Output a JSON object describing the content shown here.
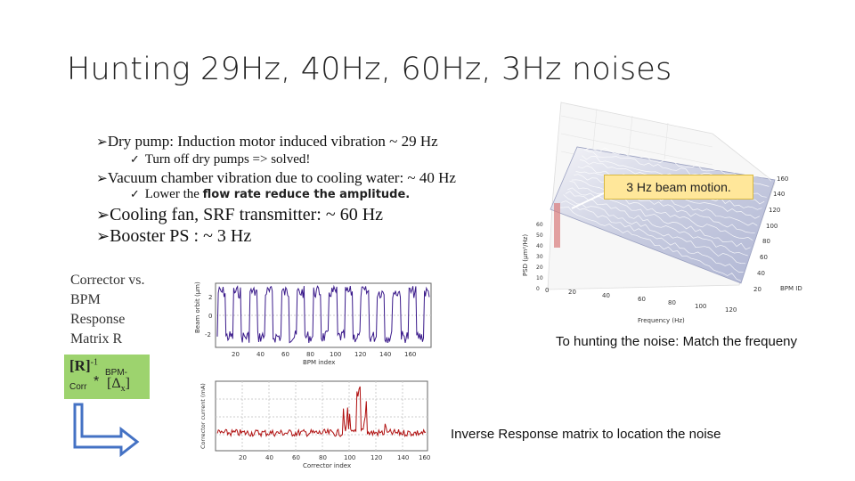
{
  "title": "Hunting 29Hz, 40Hz, 60Hz, 3Hz noises",
  "bullets": [
    {
      "text": "Dry pump: Induction motor induced vibration ~ 29 Hz"
    },
    {
      "sub": "Turn off dry pumps => solved!"
    },
    {
      "text": "Vacuum chamber vibration due to cooling water: ~ 40 Hz"
    },
    {
      "sub_prefix": "Lower the ",
      "sub_bold": "flow rate reduce the amplitude."
    },
    {
      "text": "Cooling fan, SRF transmitter: ~ 60 Hz"
    },
    {
      "text": "Booster PS : ~ 3 Hz"
    }
  ],
  "left_label": [
    "Corrector vs.",
    "BPM",
    "Response",
    "Matrix R"
  ],
  "formula": {
    "R": "[R]",
    "sup": "-1",
    "sub1": "BPM-",
    "sub2": "Corr",
    "star": "*",
    "delta": "[Δ",
    "delta_sub": "x",
    "close": "]"
  },
  "plot_top": {
    "ylabel": "Beam orbit (μm)",
    "xlabel": "BPM index",
    "xticks": [
      "20",
      "40",
      "60",
      "80",
      "100",
      "120",
      "140",
      "160"
    ],
    "yticks": [
      "2",
      "0",
      "-2"
    ]
  },
  "plot_bottom": {
    "ylabel": "Corrector current (mA)",
    "xlabel": "Corrector index",
    "xticks": [
      "20",
      "40",
      "60",
      "80",
      "100",
      "120",
      "140",
      "160"
    ]
  },
  "plot_3d": {
    "callout": "3 Hz beam motion.",
    "zlabel": "PSD (μm²/Hz)",
    "xlabel": "Frequency (Hz)",
    "ylabel": "BPM ID",
    "xticks": [
      "0",
      "20",
      "40",
      "60",
      "80",
      "100",
      "120"
    ],
    "yticks": [
      "20",
      "40",
      "60",
      "80",
      "100",
      "120",
      "140",
      "160"
    ],
    "zticks": [
      "0",
      "10",
      "20",
      "30",
      "40",
      "50",
      "60",
      "70",
      "80"
    ]
  },
  "caption_right": "To hunting the noise: Match the frequeny",
  "caption_bottom": "Inverse Response matrix to location the noise",
  "colors": {
    "top_trace": "#3a1a8a",
    "bottom_trace": "#b01010",
    "green_box": "#9dd36e",
    "callout_bg": "#ffe79a",
    "arrow": "#4472c4"
  }
}
